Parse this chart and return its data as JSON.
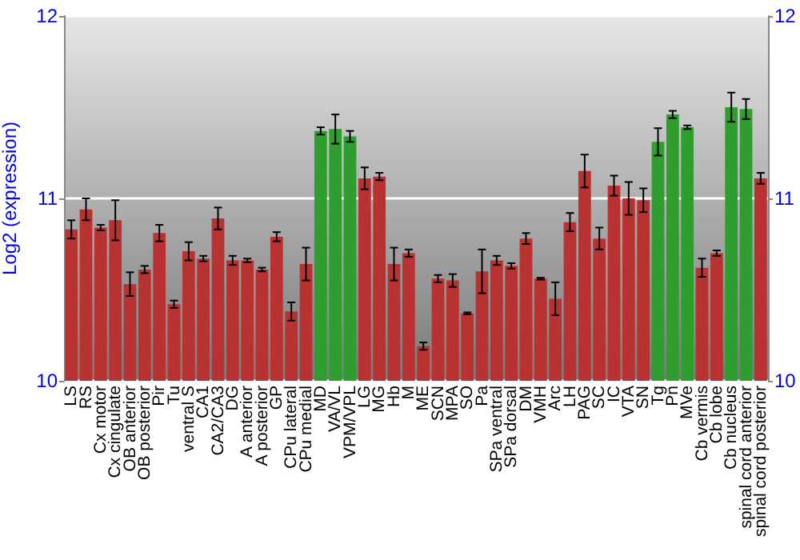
{
  "chart_data": {
    "type": "bar",
    "ylabel": "Log2 (expression)",
    "categories": [
      "LS",
      "RS",
      "Cx motor",
      "Cx cingulate",
      "OB anterior",
      "OB posterior",
      "Pir",
      "Tu",
      "ventral S",
      "CA1",
      "CA2/CA3",
      "DG",
      "A anterior",
      "A posterior",
      "GP",
      "CPu lateral",
      "CPu medial",
      "MD",
      "VA/VL",
      "VPM/VPL",
      "LG",
      "MG",
      "Hb",
      "M",
      "ME",
      "SCN",
      "MPA",
      "SO",
      "Pa",
      "SPa ventral",
      "SPa dorsal",
      "DM",
      "VMH",
      "Arc",
      "LH",
      "PAG",
      "SC",
      "IC",
      "VTA",
      "SN",
      "Tg",
      "Pn",
      "MVe",
      "Cb vermis",
      "Cb lobe",
      "Cb nucleus",
      "spinal cord anterior",
      "spinal cord posterior"
    ],
    "values": [
      10.83,
      10.94,
      10.84,
      10.88,
      10.53,
      10.61,
      10.81,
      10.42,
      10.71,
      10.67,
      10.89,
      10.66,
      10.66,
      10.61,
      10.79,
      10.38,
      10.64,
      11.37,
      11.38,
      11.34,
      11.11,
      11.12,
      10.64,
      10.7,
      10.19,
      10.56,
      10.55,
      10.37,
      10.6,
      10.66,
      10.63,
      10.78,
      10.56,
      10.45,
      10.87,
      11.15,
      10.78,
      11.07,
      11.0,
      10.99,
      11.31,
      11.46,
      11.39,
      10.62,
      10.7,
      11.5,
      11.49,
      11.11
    ],
    "errors": [
      0.05,
      0.06,
      0.015,
      0.11,
      0.065,
      0.02,
      0.045,
      0.02,
      0.05,
      0.015,
      0.06,
      0.025,
      0.01,
      0.01,
      0.025,
      0.05,
      0.09,
      0.02,
      0.08,
      0.03,
      0.06,
      0.02,
      0.09,
      0.02,
      0.02,
      0.02,
      0.035,
      0.005,
      0.12,
      0.025,
      0.015,
      0.03,
      0.005,
      0.09,
      0.05,
      0.09,
      0.06,
      0.055,
      0.09,
      0.065,
      0.075,
      0.02,
      0.01,
      0.05,
      0.015,
      0.08,
      0.055,
      0.03
    ],
    "colors": [
      "#b83232",
      "#b83232",
      "#b83232",
      "#b83232",
      "#b83232",
      "#b83232",
      "#b83232",
      "#b83232",
      "#b83232",
      "#b83232",
      "#b83232",
      "#b83232",
      "#b83232",
      "#b83232",
      "#b83232",
      "#b83232",
      "#b83232",
      "#2e9e2e",
      "#2e9e2e",
      "#2e9e2e",
      "#b83232",
      "#b83232",
      "#b83232",
      "#b83232",
      "#b83232",
      "#b83232",
      "#b83232",
      "#b83232",
      "#b83232",
      "#b83232",
      "#b83232",
      "#b83232",
      "#b83232",
      "#b83232",
      "#b83232",
      "#b83232",
      "#b83232",
      "#b83232",
      "#b83232",
      "#b83232",
      "#2e9e2e",
      "#2e9e2e",
      "#2e9e2e",
      "#b83232",
      "#b83232",
      "#2e9e2e",
      "#2e9e2e",
      "#b83232"
    ],
    "ylim": [
      10,
      12
    ],
    "yticks": [
      10,
      11,
      12
    ],
    "y2lim": [
      10,
      12
    ],
    "y2ticks": [
      10,
      11,
      12
    ],
    "grid": "y"
  }
}
